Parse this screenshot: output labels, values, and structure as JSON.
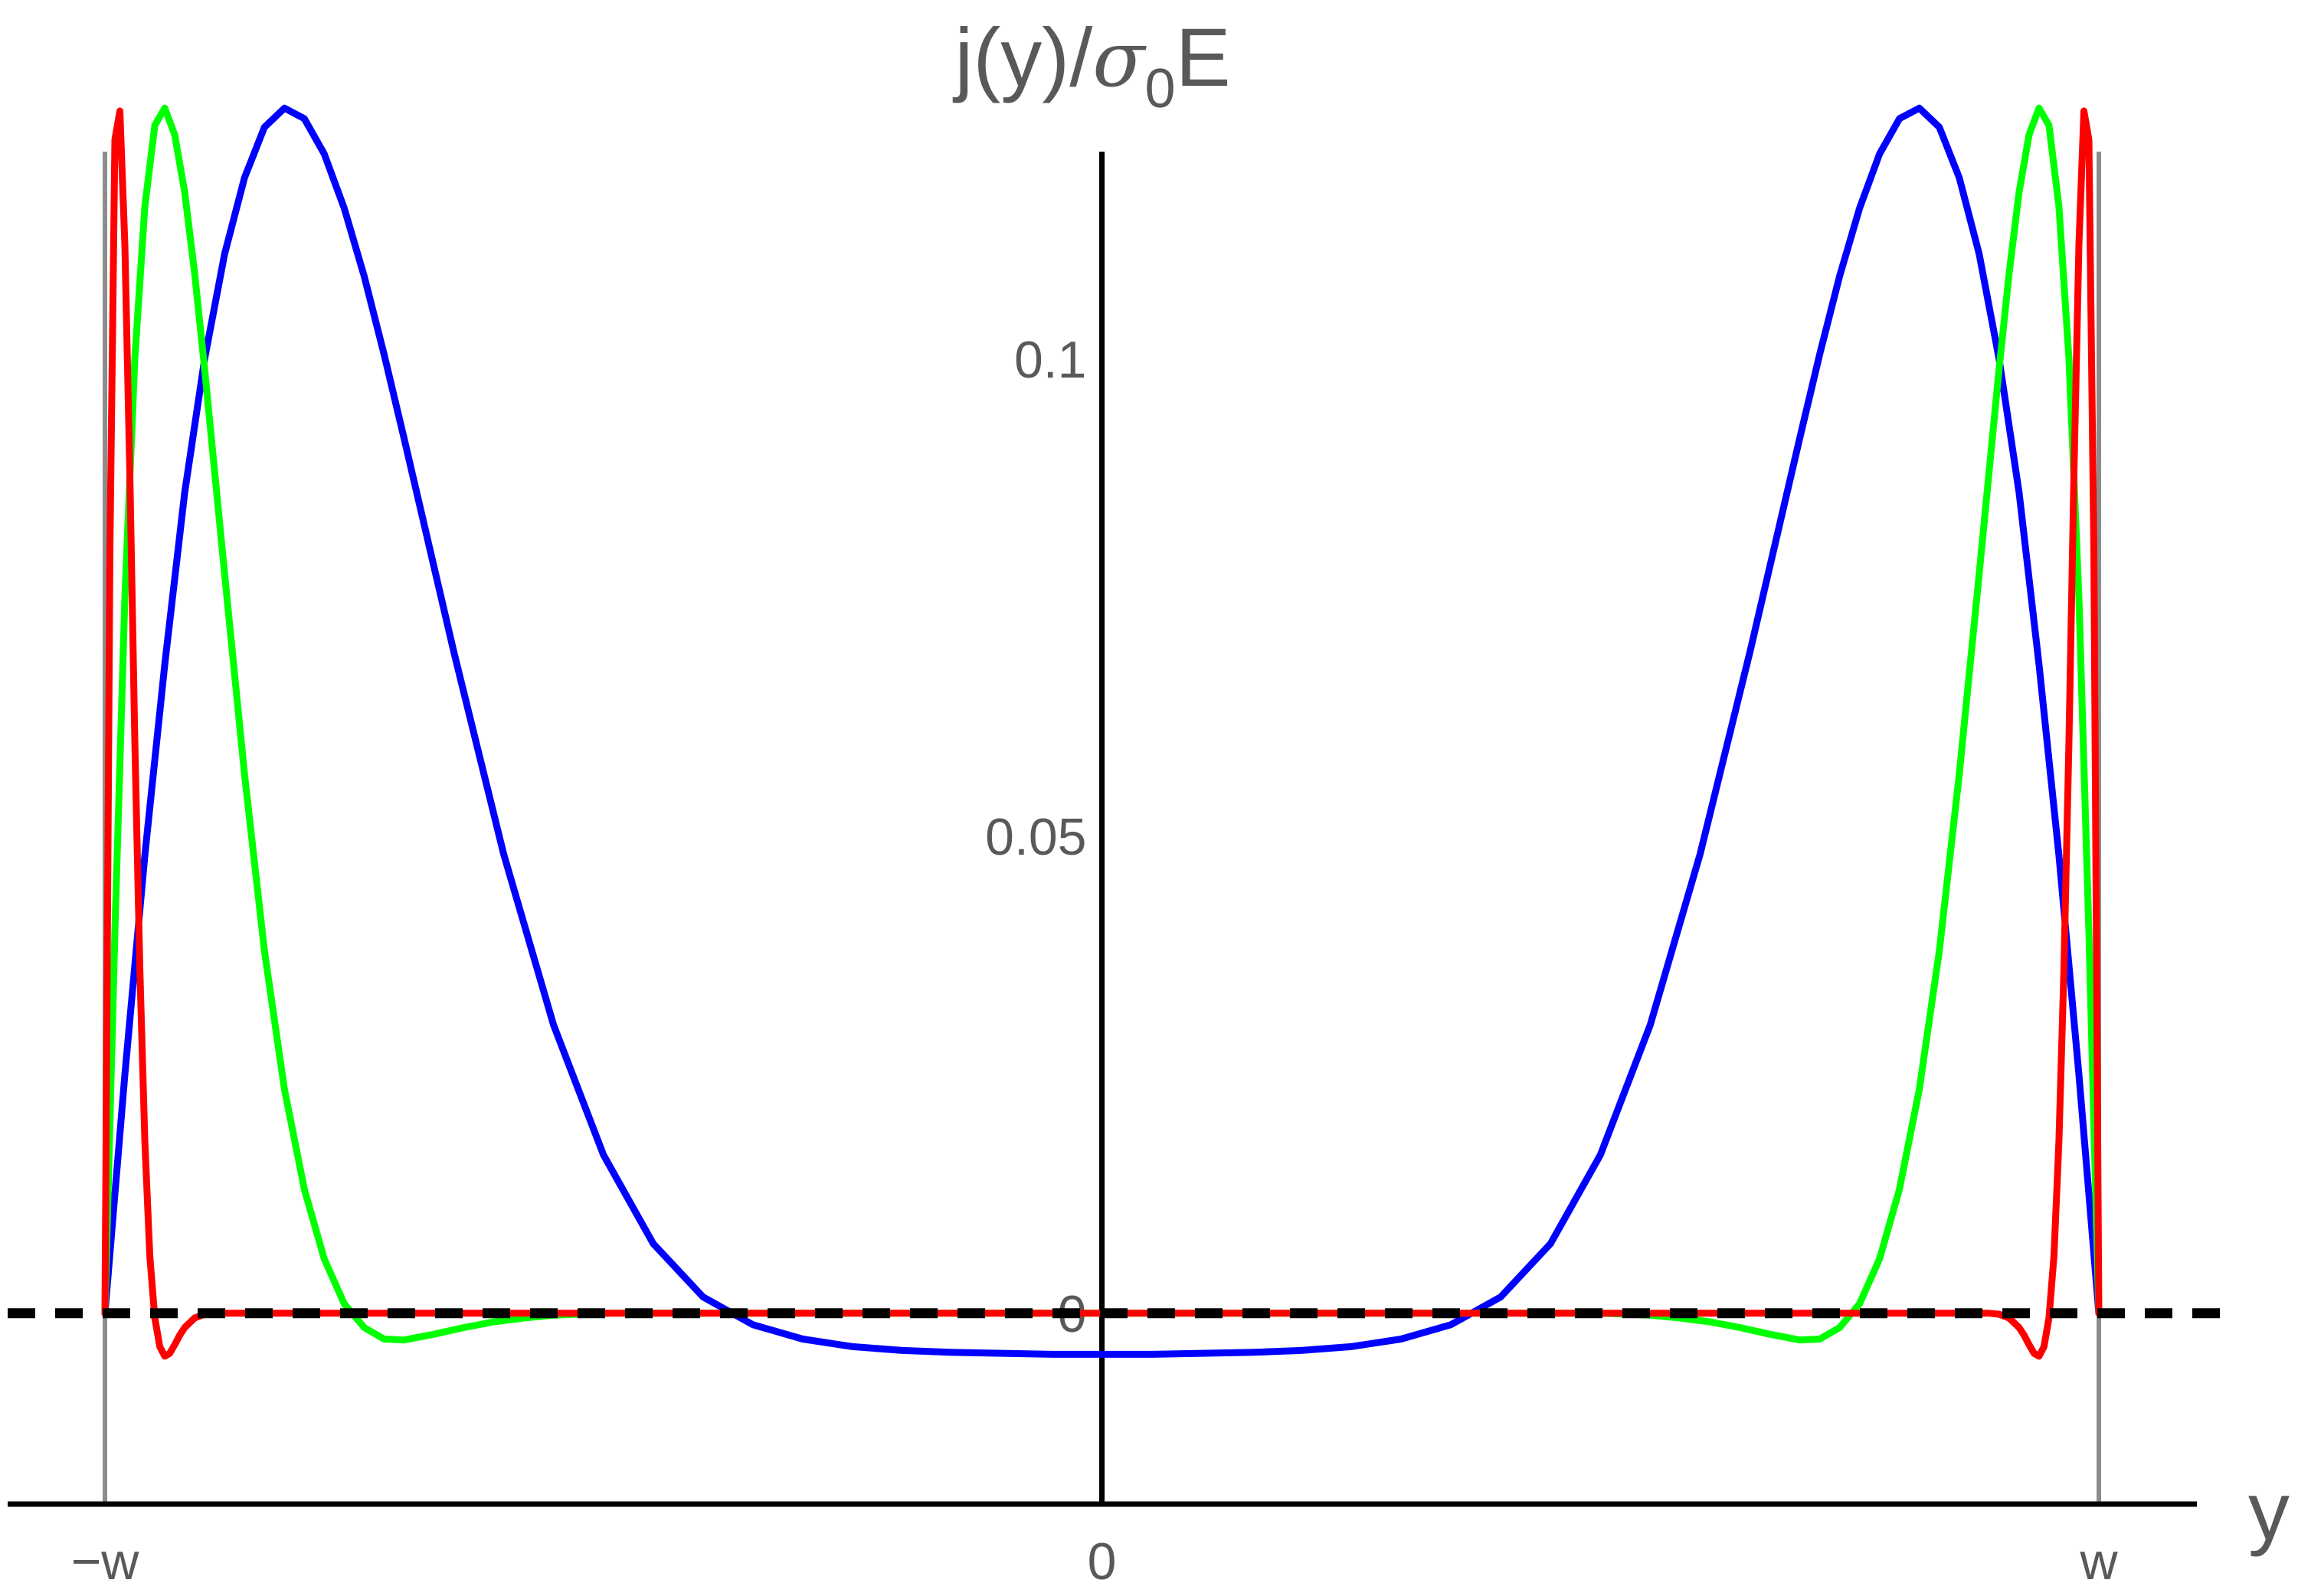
{
  "chart_data": {
    "type": "line",
    "title": "",
    "xlabel": "y",
    "ylabel": {
      "prefix": "j(y)/",
      "sigma": "σ",
      "subscript": "0",
      "suffix": "E"
    },
    "xlim": [
      -1.0,
      1.0
    ],
    "ylim": [
      -0.02,
      0.128
    ],
    "x_ticks": [
      {
        "value": -1.0,
        "label": "−w"
      },
      {
        "value": 0.0,
        "label": "0"
      },
      {
        "value": 1.0,
        "label": "w"
      }
    ],
    "y_ticks": [
      {
        "value": 0.0,
        "label": "0"
      },
      {
        "value": 0.05,
        "label": "0.05"
      },
      {
        "value": 0.1,
        "label": "0.1"
      }
    ],
    "reference_lines": {
      "vertical_at_x": [
        -1.0,
        1.0
      ],
      "horizontal_dashed_at_y": 0.0
    },
    "grid": false,
    "legend": "none",
    "colors": {
      "blue": "#0000ff",
      "green": "#00ff00",
      "red": "#ff0000",
      "axis": "#000000",
      "boundary": "#8c8c8c",
      "text": "#595959"
    },
    "series": [
      {
        "color": "#0000ff",
        "x": [
          -1.0,
          -0.98,
          -0.96,
          -0.94,
          -0.92,
          -0.9,
          -0.88,
          -0.86,
          -0.84,
          -0.82,
          -0.8,
          -0.78,
          -0.76,
          -0.74,
          -0.72,
          -0.7,
          -0.65,
          -0.6,
          -0.55,
          -0.5,
          -0.45,
          -0.4,
          -0.35,
          -0.3,
          -0.25,
          -0.2,
          -0.15,
          -0.1,
          -0.05,
          0.0,
          0.05,
          0.1,
          0.15,
          0.2,
          0.25,
          0.3,
          0.35,
          0.4,
          0.45,
          0.5,
          0.55,
          0.6,
          0.65,
          0.7,
          0.72,
          0.74,
          0.76,
          0.78,
          0.8,
          0.82,
          0.84,
          0.86,
          0.88,
          0.9,
          0.92,
          0.94,
          0.96,
          0.98,
          1.0
        ],
        "y": [
          0.0,
          0.025,
          0.048,
          0.068,
          0.086,
          0.1,
          0.111,
          0.119,
          0.1243,
          0.1263,
          0.1252,
          0.1215,
          0.1158,
          0.1087,
          0.1005,
          0.0917,
          0.0693,
          0.0481,
          0.0302,
          0.0166,
          0.0073,
          0.0017,
          -0.0012,
          -0.0027,
          -0.0035,
          -0.0039,
          -0.0041,
          -0.0042,
          -0.0043,
          -0.0043,
          -0.0043,
          -0.0042,
          -0.0041,
          -0.0039,
          -0.0035,
          -0.0027,
          -0.0012,
          0.0017,
          0.0073,
          0.0166,
          0.0302,
          0.0481,
          0.0693,
          0.0917,
          0.1005,
          0.1087,
          0.1158,
          0.1215,
          0.1252,
          0.1263,
          0.1243,
          0.119,
          0.111,
          0.1,
          0.086,
          0.068,
          0.048,
          0.025,
          0.0
        ]
      },
      {
        "color": "#00ff00",
        "x": [
          -1.0,
          -0.99,
          -0.98,
          -0.97,
          -0.96,
          -0.95,
          -0.94,
          -0.93,
          -0.92,
          -0.91,
          -0.9,
          -0.88,
          -0.86,
          -0.84,
          -0.82,
          -0.8,
          -0.78,
          -0.76,
          -0.74,
          -0.72,
          -0.7,
          -0.67,
          -0.64,
          -0.61,
          -0.58,
          -0.55,
          -0.5,
          -0.45,
          -0.4,
          -0.35,
          -0.3,
          -0.2,
          -0.1,
          0.0,
          0.1,
          0.2,
          0.3,
          0.35,
          0.4,
          0.45,
          0.5,
          0.55,
          0.58,
          0.61,
          0.64,
          0.67,
          0.7,
          0.72,
          0.74,
          0.76,
          0.78,
          0.8,
          0.82,
          0.84,
          0.86,
          0.88,
          0.9,
          0.91,
          0.92,
          0.93,
          0.94,
          0.95,
          0.96,
          0.97,
          0.98,
          0.99,
          1.0
        ],
        "y": [
          0.0,
          0.04,
          0.075,
          0.1,
          0.116,
          0.1245,
          0.1263,
          0.1235,
          0.1175,
          0.109,
          0.099,
          0.0775,
          0.0565,
          0.038,
          0.0235,
          0.013,
          0.0057,
          0.001,
          -0.0015,
          -0.0027,
          -0.0028,
          -0.0022,
          -0.0015,
          -0.0009,
          -0.0005,
          -0.0002,
          0.0,
          0.0,
          0.0,
          0.0,
          0.0,
          0.0,
          0.0,
          0.0,
          0.0,
          0.0,
          0.0,
          0.0,
          0.0,
          0.0,
          0.0,
          -0.0002,
          -0.0005,
          -0.0009,
          -0.0015,
          -0.0022,
          -0.0028,
          -0.0027,
          -0.0015,
          0.001,
          0.0057,
          0.013,
          0.0235,
          0.038,
          0.0565,
          0.0775,
          0.099,
          0.109,
          0.1175,
          0.1235,
          0.1263,
          0.1245,
          0.116,
          0.1,
          0.075,
          0.04,
          0.0
        ]
      },
      {
        "color": "#ff0000",
        "x": [
          -1.0,
          -0.995,
          -0.99,
          -0.985,
          -0.98,
          -0.975,
          -0.97,
          -0.965,
          -0.96,
          -0.955,
          -0.95,
          -0.945,
          -0.94,
          -0.935,
          -0.93,
          -0.925,
          -0.92,
          -0.91,
          -0.9,
          -0.89,
          -0.88,
          -0.86,
          -0.84,
          -0.8,
          -0.75,
          -0.6,
          -0.3,
          0.0,
          0.3,
          0.6,
          0.75,
          0.8,
          0.84,
          0.86,
          0.88,
          0.89,
          0.9,
          0.91,
          0.92,
          0.925,
          0.93,
          0.935,
          0.94,
          0.945,
          0.95,
          0.955,
          0.96,
          0.965,
          0.97,
          0.975,
          0.98,
          0.985,
          0.99,
          0.995,
          1.0
        ],
        "y": [
          0.0,
          0.08,
          0.123,
          0.126,
          0.112,
          0.088,
          0.06,
          0.036,
          0.018,
          0.006,
          -0.0005,
          -0.0035,
          -0.0045,
          -0.0042,
          -0.0033,
          -0.0023,
          -0.0015,
          -0.0005,
          -0.0001,
          0.0,
          0.0,
          0.0,
          0.0,
          0.0,
          0.0,
          0.0,
          0.0,
          0.0,
          0.0,
          0.0,
          0.0,
          0.0,
          0.0,
          0.0,
          0.0,
          0.0,
          -0.0001,
          -0.0005,
          -0.0015,
          -0.0023,
          -0.0033,
          -0.0042,
          -0.0045,
          -0.0035,
          -0.0005,
          0.006,
          0.018,
          0.036,
          0.06,
          0.088,
          0.112,
          0.126,
          0.123,
          0.08,
          0.0
        ]
      }
    ]
  }
}
